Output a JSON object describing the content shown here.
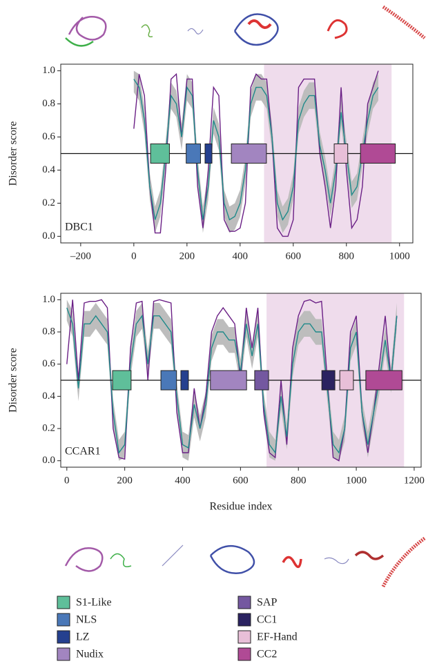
{
  "chart_data": [
    {
      "type": "line",
      "y_label": "Disorder score",
      "panel_label": "DBC1",
      "xlim": [
        -275,
        1050
      ],
      "ylim": [
        -0.04,
        1.04
      ],
      "xticks": [
        {
          "value": -200,
          "label": "–200"
        },
        0,
        200,
        400,
        600,
        800,
        1000
      ],
      "yticks": [
        {
          "value": 0,
          "label": "0.0"
        },
        0.2,
        0.4,
        0.6,
        0.8,
        {
          "value": 1,
          "label": "1.0"
        }
      ],
      "threshold": 0.5,
      "shaded_region": [
        490,
        970
      ],
      "shade_color": "#efdcec",
      "x": [
        0,
        20,
        40,
        60,
        80,
        100,
        120,
        140,
        160,
        180,
        200,
        220,
        240,
        260,
        280,
        300,
        320,
        340,
        360,
        380,
        400,
        420,
        440,
        460,
        480,
        500,
        520,
        540,
        560,
        580,
        600,
        620,
        640,
        660,
        680,
        700,
        720,
        740,
        760,
        780,
        800,
        820,
        840,
        860,
        880,
        900,
        920
      ],
      "band": {
        "color": "#bdbdbd",
        "upper": [
          1.0,
          0.98,
          0.78,
          0.38,
          0.18,
          0.28,
          0.58,
          0.93,
          0.88,
          0.68,
          0.98,
          0.93,
          0.48,
          0.18,
          0.38,
          0.78,
          0.68,
          0.28,
          0.18,
          0.2,
          0.28,
          0.48,
          0.88,
          0.98,
          0.98,
          0.93,
          0.68,
          0.28,
          0.18,
          0.23,
          0.38,
          0.78,
          0.88,
          0.93,
          0.93,
          0.63,
          0.48,
          0.28,
          0.48,
          0.83,
          0.58,
          0.33,
          0.38,
          0.58,
          0.78,
          0.93,
          0.98
        ],
        "lower": [
          0.87,
          0.82,
          0.62,
          0.22,
          0.02,
          0.12,
          0.42,
          0.77,
          0.72,
          0.52,
          0.82,
          0.77,
          0.32,
          0.02,
          0.22,
          0.62,
          0.52,
          0.12,
          0.02,
          0.04,
          0.12,
          0.32,
          0.72,
          0.82,
          0.82,
          0.77,
          0.52,
          0.12,
          0.02,
          0.07,
          0.22,
          0.62,
          0.72,
          0.77,
          0.77,
          0.47,
          0.32,
          0.12,
          0.32,
          0.67,
          0.42,
          0.17,
          0.22,
          0.42,
          0.62,
          0.77,
          0.82
        ]
      },
      "lines": [
        {
          "color": "#6a1f85",
          "values": [
            0.65,
            0.98,
            0.85,
            0.3,
            0.02,
            0.02,
            0.4,
            0.95,
            0.98,
            0.6,
            0.95,
            0.95,
            0.3,
            0.05,
            0.4,
            0.9,
            0.85,
            0.1,
            0.03,
            0.03,
            0.05,
            0.2,
            0.9,
            0.98,
            0.95,
            0.95,
            0.6,
            0.05,
            0.0,
            0.0,
            0.1,
            0.9,
            0.95,
            0.95,
            0.95,
            0.5,
            0.3,
            0.05,
            0.3,
            0.9,
            0.4,
            0.05,
            0.1,
            0.3,
            0.8,
            0.9,
            1.0
          ]
        },
        {
          "color": "#1f8a8a",
          "values": [
            0.95,
            0.9,
            0.7,
            0.3,
            0.1,
            0.2,
            0.5,
            0.85,
            0.8,
            0.6,
            0.9,
            0.85,
            0.4,
            0.1,
            0.3,
            0.7,
            0.6,
            0.2,
            0.1,
            0.12,
            0.2,
            0.4,
            0.8,
            0.9,
            0.9,
            0.85,
            0.6,
            0.2,
            0.1,
            0.15,
            0.3,
            0.7,
            0.8,
            0.85,
            0.85,
            0.55,
            0.4,
            0.2,
            0.4,
            0.75,
            0.5,
            0.25,
            0.3,
            0.5,
            0.7,
            0.85,
            0.9
          ]
        }
      ],
      "domains": [
        {
          "name": "S1-Like",
          "start": 63,
          "end": 134
        },
        {
          "name": "NLS",
          "start": 197,
          "end": 251
        },
        {
          "name": "LZ",
          "start": 268,
          "end": 294
        },
        {
          "name": "Nudix",
          "start": 367,
          "end": 499
        },
        {
          "name": "EF-Hand",
          "start": 754,
          "end": 805
        },
        {
          "name": "CC2",
          "start": 853,
          "end": 984
        }
      ]
    },
    {
      "type": "line",
      "y_label": "Disorder score",
      "x_label": "Residue index",
      "panel_label": "CCAR1",
      "xlim": [
        -21,
        1224
      ],
      "ylim": [
        -0.04,
        1.04
      ],
      "xticks": [
        0,
        200,
        400,
        600,
        800,
        1000,
        1200
      ],
      "yticks": [
        {
          "value": 0,
          "label": "0.0"
        },
        0.2,
        0.4,
        0.6,
        0.8,
        {
          "value": 1,
          "label": "1.0"
        }
      ],
      "threshold": 0.5,
      "shaded_region": [
        690,
        1165
      ],
      "shade_color": "#efdcec",
      "x": [
        0,
        20,
        40,
        60,
        80,
        100,
        120,
        140,
        160,
        180,
        200,
        220,
        240,
        260,
        280,
        300,
        320,
        340,
        360,
        380,
        400,
        420,
        440,
        460,
        480,
        500,
        520,
        540,
        560,
        580,
        600,
        620,
        640,
        660,
        680,
        700,
        720,
        740,
        760,
        780,
        800,
        820,
        840,
        860,
        880,
        900,
        920,
        940,
        960,
        980,
        1000,
        1020,
        1040,
        1060,
        1080,
        1100,
        1120,
        1140
      ],
      "band": {
        "color": "#bdbdbd",
        "upper": [
          1.0,
          0.93,
          0.53,
          0.93,
          0.93,
          0.98,
          0.93,
          0.88,
          0.38,
          0.13,
          0.18,
          0.68,
          0.93,
          0.98,
          0.68,
          0.98,
          0.98,
          0.93,
          0.88,
          0.48,
          0.18,
          0.16,
          0.43,
          0.28,
          0.43,
          0.78,
          0.88,
          0.88,
          0.83,
          0.83,
          0.63,
          0.93,
          0.73,
          0.93,
          0.43,
          0.18,
          0.13,
          0.48,
          0.23,
          0.68,
          0.88,
          0.93,
          0.93,
          0.88,
          0.88,
          0.53,
          0.18,
          0.13,
          0.28,
          0.78,
          0.88,
          0.38,
          0.18,
          0.38,
          0.58,
          0.83,
          0.58,
          0.98
        ],
        "lower": [
          0.87,
          0.77,
          0.37,
          0.77,
          0.77,
          0.82,
          0.77,
          0.72,
          0.22,
          0.0,
          0.02,
          0.52,
          0.77,
          0.82,
          0.52,
          0.82,
          0.82,
          0.77,
          0.72,
          0.32,
          0.02,
          0.0,
          0.27,
          0.12,
          0.27,
          0.62,
          0.72,
          0.72,
          0.67,
          0.67,
          0.47,
          0.77,
          0.57,
          0.77,
          0.27,
          0.02,
          0.0,
          0.32,
          0.07,
          0.52,
          0.72,
          0.77,
          0.77,
          0.72,
          0.72,
          0.37,
          0.02,
          0.0,
          0.12,
          0.62,
          0.72,
          0.22,
          0.02,
          0.22,
          0.42,
          0.67,
          0.42,
          0.82
        ]
      },
      "lines": [
        {
          "color": "#6a1f85",
          "values": [
            0.6,
            1.0,
            0.5,
            0.98,
            0.99,
            0.99,
            1.0,
            0.95,
            0.2,
            0.02,
            0.01,
            0.7,
            0.98,
            0.99,
            0.5,
            0.99,
            1.0,
            0.99,
            0.98,
            0.3,
            0.05,
            0.05,
            0.45,
            0.2,
            0.4,
            0.8,
            0.9,
            0.95,
            0.9,
            0.85,
            0.5,
            0.95,
            0.7,
            0.95,
            0.3,
            0.05,
            0.02,
            0.5,
            0.1,
            0.7,
            0.9,
            0.99,
            1.0,
            0.98,
            0.99,
            0.5,
            0.02,
            0.0,
            0.2,
            0.8,
            0.9,
            0.3,
            0.05,
            0.3,
            0.6,
            0.9,
            0.5,
            0.9
          ]
        },
        {
          "color": "#1f8a8a",
          "values": [
            0.95,
            0.85,
            0.45,
            0.85,
            0.85,
            0.9,
            0.85,
            0.8,
            0.3,
            0.05,
            0.1,
            0.6,
            0.85,
            0.9,
            0.6,
            0.9,
            0.9,
            0.85,
            0.8,
            0.4,
            0.1,
            0.08,
            0.35,
            0.2,
            0.35,
            0.7,
            0.8,
            0.8,
            0.75,
            0.75,
            0.55,
            0.85,
            0.65,
            0.85,
            0.35,
            0.1,
            0.05,
            0.4,
            0.15,
            0.6,
            0.8,
            0.85,
            0.85,
            0.8,
            0.8,
            0.45,
            0.1,
            0.05,
            0.2,
            0.7,
            0.8,
            0.3,
            0.1,
            0.3,
            0.5,
            0.75,
            0.5,
            0.9
          ]
        }
      ],
      "domains": [
        {
          "name": "S1-Like",
          "start": 158,
          "end": 222
        },
        {
          "name": "NLS",
          "start": 325,
          "end": 379
        },
        {
          "name": "LZ",
          "start": 394,
          "end": 420
        },
        {
          "name": "Nudix",
          "start": 496,
          "end": 621
        },
        {
          "name": "SAP",
          "start": 649,
          "end": 697
        },
        {
          "name": "CC1",
          "start": 881,
          "end": 926
        },
        {
          "name": "EF-Hand",
          "start": 943,
          "end": 990
        },
        {
          "name": "CC2",
          "start": 1033,
          "end": 1158
        }
      ]
    }
  ],
  "legend": [
    {
      "name": "S1-Like",
      "color": "#5fbf9a"
    },
    {
      "name": "NLS",
      "color": "#4a78b8"
    },
    {
      "name": "LZ",
      "color": "#25408f"
    },
    {
      "name": "Nudix",
      "color": "#a285c0"
    },
    {
      "name": "SAP",
      "color": "#7458a0"
    },
    {
      "name": "CC1",
      "color": "#2a2260"
    },
    {
      "name": "EF-Hand",
      "color": "#e8bfd8"
    },
    {
      "name": "CC2",
      "color": "#b04a95"
    }
  ]
}
